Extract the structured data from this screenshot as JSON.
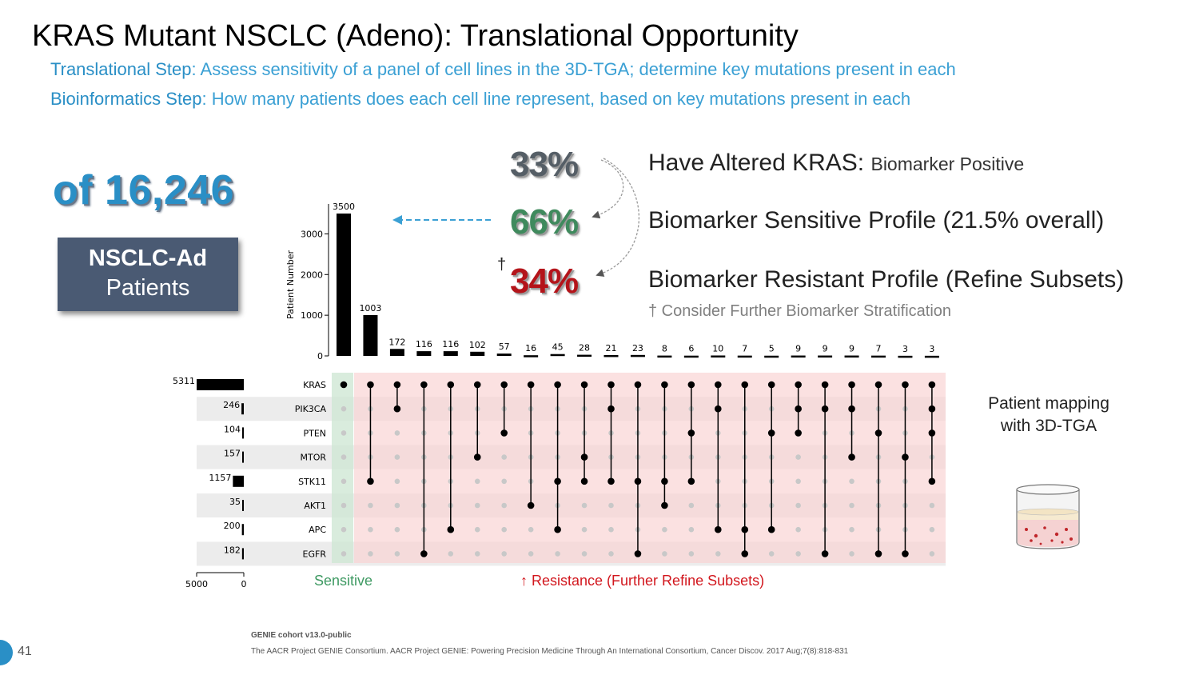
{
  "title": "KRAS Mutant NSCLC (Adeno): Translational Opportunity",
  "steps": [
    {
      "key": "Translational Step",
      "text": ": Assess sensitivity of a panel of cell lines in the 3D-TGA; determine key mutations present in each"
    },
    {
      "key": "Bioinformatics Step",
      "text": ": How many patients does each cell line represent, based on key mutations present in each"
    }
  ],
  "cohort": {
    "total": "of 16,246",
    "label1": "NSCLC-Ad",
    "label2": "Patients"
  },
  "percentages": [
    {
      "value": "33%",
      "main": "Have Altered KRAS:",
      "sub": "Biomarker Positive",
      "color": "#555e66"
    },
    {
      "value": "66%",
      "main": "Biomarker Sensitive Profile (21.5% overall)",
      "sub": "",
      "color": "#3f8a5d"
    },
    {
      "value": "34%",
      "main": "Biomarker Resistant Profile (Refine Subsets)",
      "sub": "",
      "color": "#b4141a"
    }
  ],
  "dagger": "†",
  "note": "† Consider Further Biomarker Stratification",
  "chart_labels": {
    "sensitive": "Sensitive",
    "resistance": "↑ Resistance (Further Refine Subsets)"
  },
  "patient_mapping": "Patient mapping with 3D-TGA",
  "sources": [
    "GENIE cohort v13.0-public",
    "The AACR Project GENIE Consortium. AACR Project GENIE: Powering Precision Medicine Through An International Consortium, Cancer Discov. 2017 Aug;7(8):818-831"
  ],
  "page_number": "41",
  "colors": {
    "accent": "#2a8fc6",
    "sensitive_band": "#e3f1e6",
    "resistant_band": "#fbe3e3",
    "box": "#4a5a73"
  },
  "chart_data": {
    "type": "bar",
    "title": "",
    "ylabel": "Patient Number",
    "ylim": [
      0,
      3500
    ],
    "yticks": [
      0,
      1000,
      2000,
      3000
    ],
    "intersection_counts": [
      3500,
      1003,
      172,
      116,
      116,
      102,
      57,
      16,
      45,
      28,
      21,
      23,
      8,
      6,
      10,
      7,
      5,
      9,
      9,
      9,
      7,
      3,
      3
    ],
    "genes": [
      "KRAS",
      "PIK3CA",
      "PTEN",
      "MTOR",
      "STK11",
      "AKT1",
      "APC",
      "EGFR"
    ],
    "set_sizes": [
      5311,
      246,
      104,
      157,
      1157,
      35,
      200,
      182
    ],
    "set_size_xlim": [
      5000,
      0
    ],
    "set_size_xticks": [
      5000,
      0
    ],
    "intersection_sets": [
      [
        "KRAS"
      ],
      [
        "KRAS",
        "STK11"
      ],
      [
        "KRAS",
        "PIK3CA"
      ],
      [
        "KRAS",
        "EGFR"
      ],
      [
        "KRAS",
        "APC"
      ],
      [
        "KRAS",
        "MTOR"
      ],
      [
        "KRAS",
        "PTEN"
      ],
      [
        "KRAS",
        "AKT1"
      ],
      [
        "KRAS",
        "STK11",
        "APC"
      ],
      [
        "KRAS",
        "MTOR",
        "STK11"
      ],
      [
        "KRAS",
        "PIK3CA",
        "STK11"
      ],
      [
        "KRAS",
        "STK11",
        "EGFR"
      ],
      [
        "KRAS",
        "STK11",
        "AKT1"
      ],
      [
        "KRAS",
        "PTEN",
        "STK11"
      ],
      [
        "KRAS",
        "PIK3CA",
        "APC"
      ],
      [
        "KRAS",
        "APC",
        "EGFR"
      ],
      [
        "KRAS",
        "PTEN",
        "APC"
      ],
      [
        "KRAS",
        "PIK3CA",
        "PTEN"
      ],
      [
        "KRAS",
        "PIK3CA",
        "EGFR"
      ],
      [
        "KRAS",
        "PIK3CA",
        "MTOR"
      ],
      [
        "KRAS",
        "PTEN",
        "EGFR"
      ],
      [
        "KRAS",
        "MTOR",
        "EGFR"
      ],
      [
        "KRAS",
        "PIK3CA",
        "PTEN",
        "STK11"
      ]
    ],
    "groups": [
      {
        "name": "Sensitive",
        "columns": [
          0
        ]
      },
      {
        "name": "↑ Resistance (Further Refine Subsets)",
        "columns": [
          1,
          22
        ]
      }
    ]
  }
}
